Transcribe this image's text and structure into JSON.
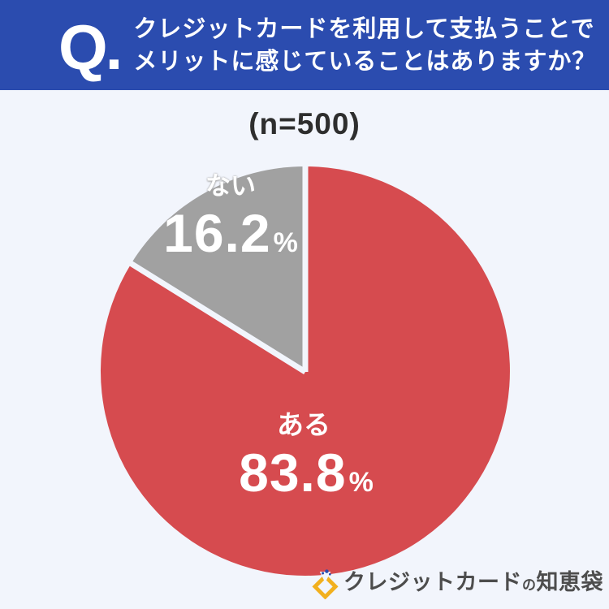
{
  "colors": {
    "header_bg": "#2b4caf",
    "page_bg": "#f2f5fc",
    "header_text": "#ffffff",
    "sample_text": "#2e2e2e"
  },
  "header": {
    "q_mark": "Q.",
    "question_line1": "クレジットカードを利用して支払うことで",
    "question_line2": "メリットに感じていることはありますか？"
  },
  "survey": {
    "sample_size_label": "(n=500)"
  },
  "chart_data": {
    "type": "pie",
    "title": "クレジットカードを利用して支払うことでメリットに感じていることはありますか？",
    "sample_size": 500,
    "start_angle_deg": 0,
    "direction": "clockwise",
    "slices": [
      {
        "label": "ある",
        "value_pct": 83.8,
        "value_display": "83.8",
        "unit": "%",
        "color": "#d64b4f",
        "text_color": "#ffffff"
      },
      {
        "label": "ない",
        "value_pct": 16.2,
        "value_display": "16.2",
        "unit": "%",
        "color": "#a1a1a1",
        "text_color": "#ffffff"
      }
    ],
    "separator_color": "#f2f5fc",
    "legend": "none (labels drawn on slices)"
  },
  "footer": {
    "logo": {
      "icon_name": "diamond-sparkle-icon",
      "text_main": "クレジットカード",
      "text_particle": "の",
      "text_suffix": "知恵袋",
      "gold": "#f2b01e",
      "sparkle_blue": "#2b4caf",
      "text_color": "#4d4d4d"
    }
  }
}
